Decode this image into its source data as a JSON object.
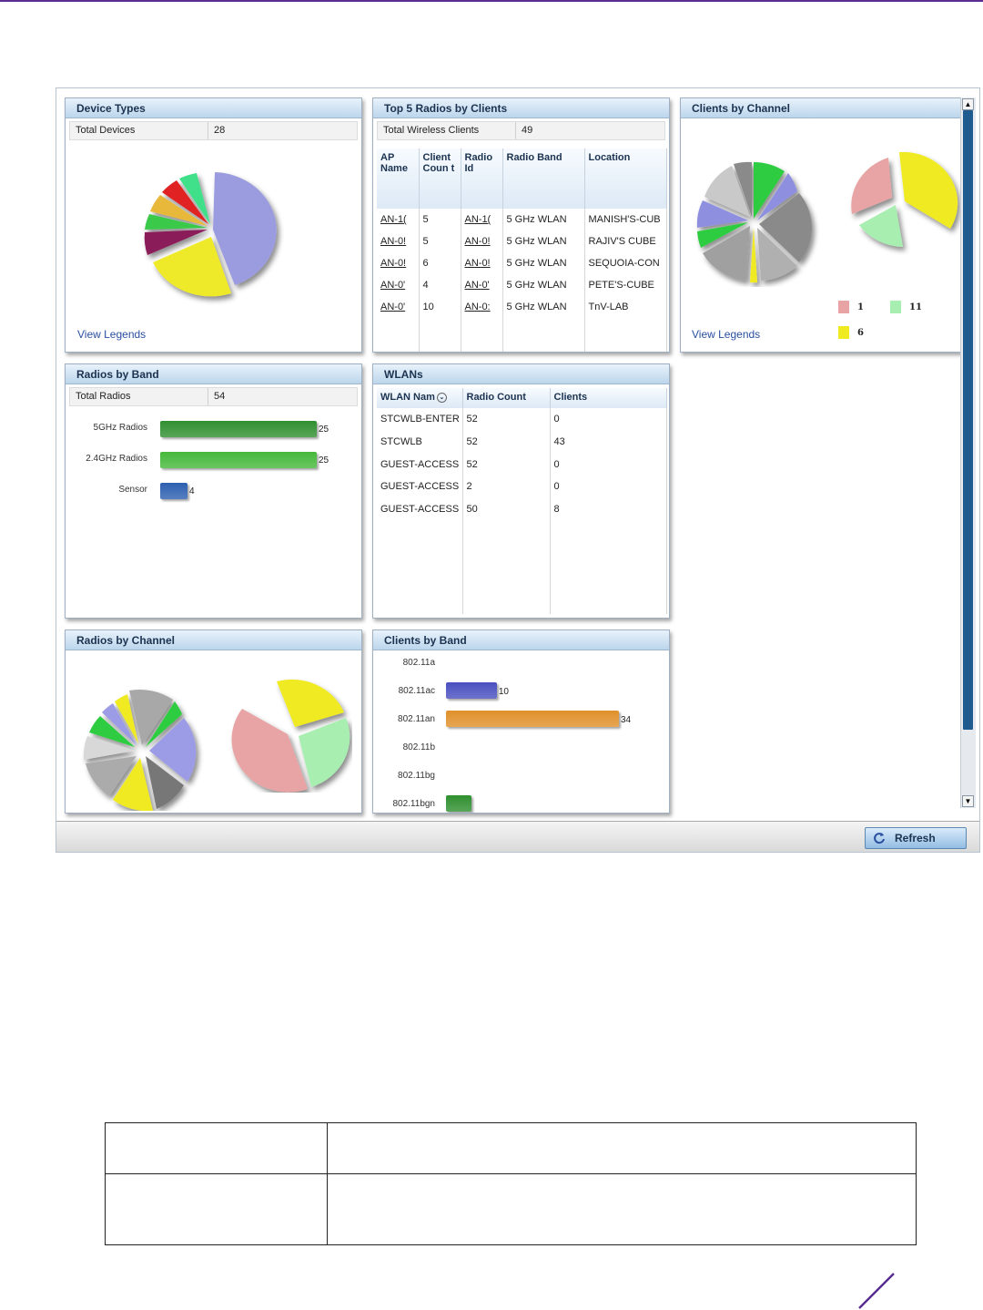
{
  "device_types": {
    "title": "Device Types",
    "total_label": "Total Devices",
    "total_value": "28",
    "view_legends": "View Legends"
  },
  "top_radios": {
    "title": "Top 5 Radios by Clients",
    "total_label": "Total Wireless Clients",
    "total_value": "49",
    "columns": [
      "AP Name",
      "Client Coun t",
      "Radio Id",
      "Radio Band",
      "Location"
    ],
    "rows": [
      [
        "AN-1(",
        "5",
        "AN-1(",
        "5 GHz WLAN",
        "MANISH'S-CUB"
      ],
      [
        "AN-0!",
        "5",
        "AN-0!",
        "5 GHz WLAN",
        "RAJIV'S CUBE"
      ],
      [
        "AN-0!",
        "6",
        "AN-0!",
        "5 GHz WLAN",
        "SEQUOIA-CON"
      ],
      [
        "AN-0'",
        "4",
        "AN-0'",
        "5 GHz WLAN",
        "PETE'S-CUBE"
      ],
      [
        "AN-0'",
        "10",
        "AN-0:",
        "5 GHz WLAN",
        "TnV-LAB"
      ]
    ]
  },
  "clients_by_channel": {
    "title": "Clients by Channel",
    "view_legends": "View Legends",
    "legend": [
      {
        "label": "1",
        "color": "#e8a4a4"
      },
      {
        "label": "11",
        "color": "#a8eeb0"
      },
      {
        "label": "6",
        "color": "#f2ef1e"
      }
    ]
  },
  "radios_by_band": {
    "title": "Radios by Band",
    "total_label": "Total Radios",
    "total_value": "54",
    "bars": [
      {
        "label": "5GHz Radios",
        "value": 25,
        "value_label": "25",
        "color": "#2f8f2f"
      },
      {
        "label": "2.4GHz Radios",
        "value": 25,
        "value_label": "25",
        "color": "#45b83a"
      },
      {
        "label": "Sensor",
        "value": 4,
        "value_label": "4",
        "color": "#2d5fb0"
      }
    ],
    "max": 25
  },
  "wlans": {
    "title": "WLANs",
    "columns": [
      "WLAN Nam",
      "Radio Count",
      "Clients"
    ],
    "rows": [
      [
        "STCWLB-ENTER",
        "52",
        "0"
      ],
      [
        "STCWLB",
        "52",
        "43"
      ],
      [
        "GUEST-ACCESS",
        "52",
        "0"
      ],
      [
        "GUEST-ACCESS",
        "2",
        "0"
      ],
      [
        "GUEST-ACCESS",
        "50",
        "8"
      ]
    ]
  },
  "radios_by_channel": {
    "title": "Radios by Channel"
  },
  "clients_by_band": {
    "title": "Clients by Band",
    "bars": [
      {
        "label": "802.11a",
        "value": 0,
        "value_label": "",
        "color": "#4a4fc0"
      },
      {
        "label": "802.11ac",
        "value": 10,
        "value_label": "10",
        "color": "#4a4fc0"
      },
      {
        "label": "802.11an",
        "value": 34,
        "value_label": "34",
        "color": "#e0902a"
      },
      {
        "label": "802.11b",
        "value": 0,
        "value_label": "",
        "color": "#4a4fc0"
      },
      {
        "label": "802.11bg",
        "value": 0,
        "value_label": "",
        "color": "#4a4fc0"
      },
      {
        "label": "802.11bgn",
        "value": 5,
        "value_label": "",
        "color": "#2f8f2f"
      }
    ],
    "max": 34
  },
  "footer": {
    "refresh_label": "Refresh"
  },
  "colors": {
    "accent": "#5a2d91",
    "panel_header": "#bcd6ec",
    "link": "#2a4fa0"
  }
}
